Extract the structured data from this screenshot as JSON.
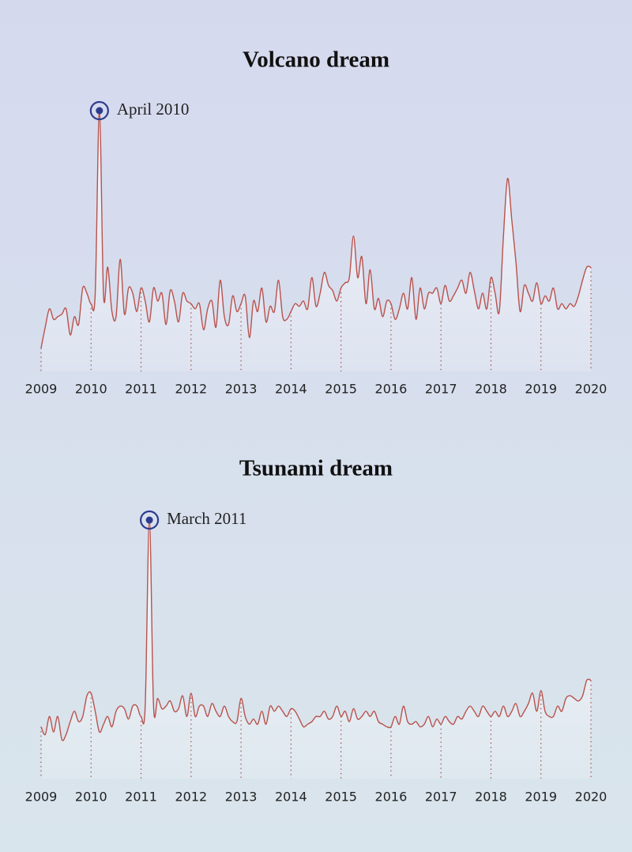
{
  "chart_data": [
    {
      "type": "line",
      "title": "Volcano dream",
      "annotation": "April 2010",
      "color": "#b9524c",
      "marker_color": "#2d3b8e",
      "grid": true,
      "x": [
        2009,
        2009.083,
        2009.167,
        2009.25,
        2009.333,
        2009.417,
        2009.5,
        2009.583,
        2009.667,
        2009.75,
        2009.833,
        2009.917,
        2010,
        2010.083,
        2010.167,
        2010.25,
        2010.333,
        2010.417,
        2010.5,
        2010.583,
        2010.667,
        2010.75,
        2010.833,
        2010.917,
        2011,
        2011.083,
        2011.167,
        2011.25,
        2011.333,
        2011.417,
        2011.5,
        2011.583,
        2011.667,
        2011.75,
        2011.833,
        2011.917,
        2012,
        2012.083,
        2012.167,
        2012.25,
        2012.333,
        2012.417,
        2012.5,
        2012.583,
        2012.667,
        2012.75,
        2012.833,
        2012.917,
        2013,
        2013.083,
        2013.167,
        2013.25,
        2013.333,
        2013.417,
        2013.5,
        2013.583,
        2013.667,
        2013.75,
        2013.833,
        2013.917,
        2014,
        2014.083,
        2014.167,
        2014.25,
        2014.333,
        2014.417,
        2014.5,
        2014.583,
        2014.667,
        2014.75,
        2014.833,
        2014.917,
        2015,
        2015.083,
        2015.167,
        2015.25,
        2015.333,
        2015.417,
        2015.5,
        2015.583,
        2015.667,
        2015.75,
        2015.833,
        2015.917,
        2016,
        2016.083,
        2016.167,
        2016.25,
        2016.333,
        2016.417,
        2016.5,
        2016.583,
        2016.667,
        2016.75,
        2016.833,
        2016.917,
        2017,
        2017.083,
        2017.167,
        2017.25,
        2017.333,
        2017.417,
        2017.5,
        2017.583,
        2017.667,
        2017.75,
        2017.833,
        2017.917,
        2018,
        2018.083,
        2018.167,
        2018.25,
        2018.333,
        2018.417,
        2018.5,
        2018.583,
        2018.667,
        2018.75,
        2018.833,
        2018.917,
        2019,
        2019.083,
        2019.167,
        2019.25,
        2019.333,
        2019.417,
        2019.5,
        2019.583,
        2019.667,
        2019.75,
        2019.833,
        2019.917,
        2020
      ],
      "values": [
        9,
        17,
        24,
        20,
        21,
        22,
        24,
        14,
        21,
        18,
        32,
        30,
        26,
        30,
        100,
        29,
        40,
        23,
        21,
        43,
        22,
        32,
        30,
        23,
        32,
        27,
        19,
        32,
        27,
        30,
        18,
        31,
        27,
        19,
        30,
        27,
        26,
        24,
        26,
        16,
        24,
        27,
        17,
        35,
        21,
        18,
        29,
        23,
        26,
        29,
        13,
        27,
        23,
        32,
        19,
        25,
        23,
        35,
        21,
        20,
        23,
        26,
        25,
        27,
        24,
        36,
        25,
        30,
        38,
        33,
        31,
        27,
        32,
        34,
        36,
        52,
        36,
        44,
        26,
        39,
        24,
        28,
        21,
        27,
        26,
        20,
        24,
        30,
        24,
        36,
        20,
        32,
        24,
        30,
        30,
        32,
        26,
        33,
        27,
        29,
        32,
        35,
        30,
        38,
        31,
        24,
        30,
        24,
        36,
        30,
        23,
        52,
        74,
        58,
        42,
        23,
        33,
        30,
        27,
        34,
        26,
        29,
        27,
        32,
        24,
        26,
        24,
        26,
        25,
        29,
        35,
        40,
        40
      ],
      "xlim": [
        2009,
        2020
      ],
      "xticks": [
        2009,
        2010,
        2011,
        2012,
        2013,
        2014,
        2015,
        2016,
        2017,
        2018,
        2019,
        2020
      ],
      "ylim": [
        0,
        100
      ]
    },
    {
      "type": "line",
      "title": "Tsunami dream",
      "annotation": "March 2011",
      "color": "#b9524c",
      "marker_color": "#2d3b8e",
      "grid": true,
      "x": [
        2009,
        2009.083,
        2009.167,
        2009.25,
        2009.333,
        2009.417,
        2009.5,
        2009.583,
        2009.667,
        2009.75,
        2009.833,
        2009.917,
        2010,
        2010.083,
        2010.167,
        2010.25,
        2010.333,
        2010.417,
        2010.5,
        2010.583,
        2010.667,
        2010.75,
        2010.833,
        2010.917,
        2011,
        2011.083,
        2011.167,
        2011.25,
        2011.333,
        2011.417,
        2011.5,
        2011.583,
        2011.667,
        2011.75,
        2011.833,
        2011.917,
        2012,
        2012.083,
        2012.167,
        2012.25,
        2012.333,
        2012.417,
        2012.5,
        2012.583,
        2012.667,
        2012.75,
        2012.833,
        2012.917,
        2013,
        2013.083,
        2013.167,
        2013.25,
        2013.333,
        2013.417,
        2013.5,
        2013.583,
        2013.667,
        2013.75,
        2013.833,
        2013.917,
        2014,
        2014.083,
        2014.167,
        2014.25,
        2014.333,
        2014.417,
        2014.5,
        2014.583,
        2014.667,
        2014.75,
        2014.833,
        2014.917,
        2015,
        2015.083,
        2015.167,
        2015.25,
        2015.333,
        2015.417,
        2015.5,
        2015.583,
        2015.667,
        2015.75,
        2015.833,
        2015.917,
        2016,
        2016.083,
        2016.167,
        2016.25,
        2016.333,
        2016.417,
        2016.5,
        2016.583,
        2016.667,
        2016.75,
        2016.833,
        2016.917,
        2017,
        2017.083,
        2017.167,
        2017.25,
        2017.333,
        2017.417,
        2017.5,
        2017.583,
        2017.667,
        2017.75,
        2017.833,
        2017.917,
        2018,
        2018.083,
        2018.167,
        2018.25,
        2018.333,
        2018.417,
        2018.5,
        2018.583,
        2018.667,
        2018.75,
        2018.833,
        2018.917,
        2019,
        2019.083,
        2019.167,
        2019.25,
        2019.333,
        2019.417,
        2019.5,
        2019.583,
        2019.667,
        2019.75,
        2019.833,
        2019.917,
        2020
      ],
      "values": [
        20,
        17,
        24,
        18,
        24,
        15,
        17,
        22,
        26,
        22,
        24,
        32,
        33,
        26,
        18,
        21,
        24,
        20,
        26,
        28,
        27,
        23,
        28,
        28,
        24,
        28,
        100,
        28,
        31,
        27,
        28,
        30,
        26,
        27,
        32,
        24,
        33,
        24,
        28,
        28,
        24,
        29,
        26,
        24,
        28,
        24,
        22,
        22,
        31,
        24,
        21,
        23,
        21,
        26,
        21,
        28,
        26,
        28,
        26,
        24,
        27,
        26,
        23,
        20,
        21,
        22,
        24,
        24,
        26,
        23,
        24,
        28,
        24,
        26,
        22,
        27,
        23,
        24,
        26,
        24,
        26,
        22,
        21,
        20,
        20,
        24,
        21,
        28,
        22,
        21,
        22,
        20,
        21,
        24,
        20,
        23,
        21,
        24,
        22,
        21,
        24,
        23,
        26,
        28,
        26,
        24,
        28,
        26,
        24,
        26,
        24,
        28,
        24,
        26,
        29,
        24,
        26,
        29,
        33,
        26,
        34,
        26,
        24,
        24,
        28,
        26,
        31,
        32,
        31,
        30,
        32,
        38,
        38
      ],
      "xlim": [
        2009,
        2020
      ],
      "xticks": [
        2009,
        2010,
        2011,
        2012,
        2013,
        2014,
        2015,
        2016,
        2017,
        2018,
        2019,
        2020
      ],
      "ylim": [
        0,
        100
      ]
    }
  ]
}
